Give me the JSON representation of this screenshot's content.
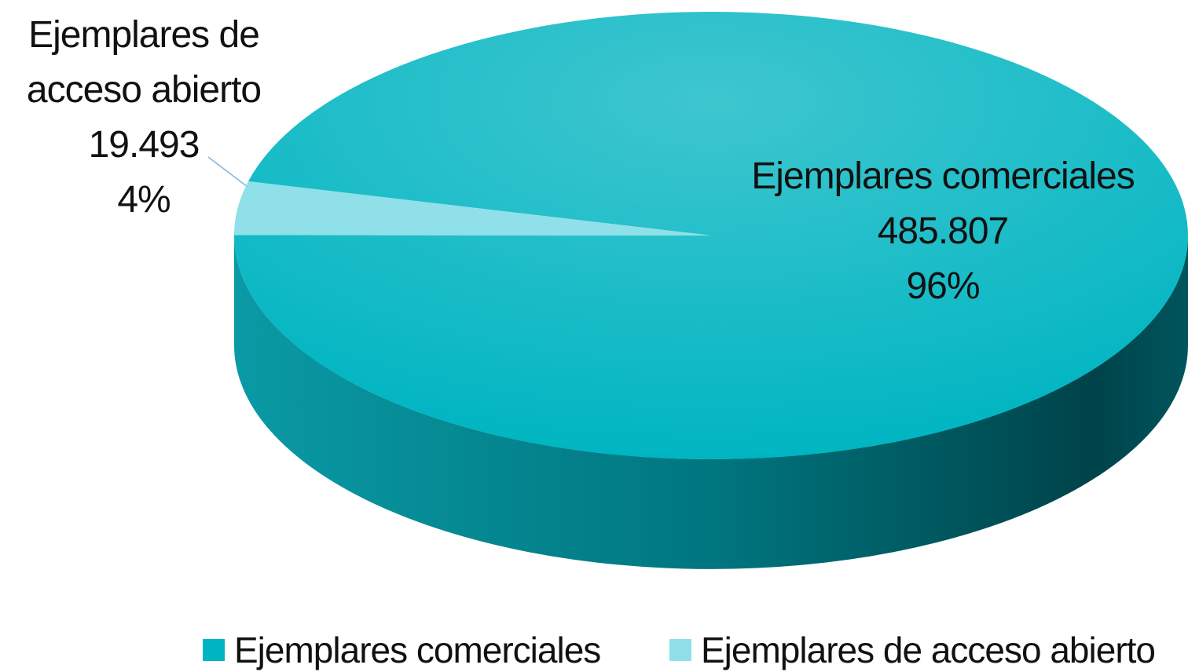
{
  "chart_data": {
    "type": "pie",
    "three_d": true,
    "categories": [
      "Ejemplares comerciales",
      "Ejemplares de acceso abierto"
    ],
    "values": [
      485807,
      19493
    ],
    "value_labels": [
      "485.807",
      "19.493"
    ],
    "percents": [
      96,
      4
    ],
    "percent_labels": [
      "96%",
      "4%"
    ],
    "colors": [
      "#00b5c2",
      "#8fe0e8"
    ],
    "legend": "bottom"
  }
}
